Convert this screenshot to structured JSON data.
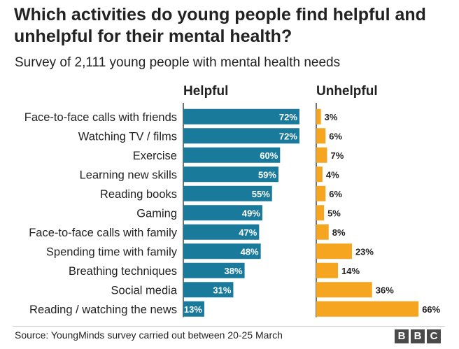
{
  "title": "Which activities do young people find helpful and unhelpful for their mental health?",
  "subtitle": "Survey of 2,111 young people with mental health needs",
  "source": "Source: YoungMinds survey carried out between 20-25 March",
  "logo": [
    "B",
    "B",
    "C"
  ],
  "colors": {
    "helpful": "#1a7a9b",
    "unhelpful": "#f5a51f",
    "axis": "#444444"
  },
  "chart_data": {
    "type": "bar",
    "categories": [
      "Face-to-face calls with friends",
      "Watching TV / films",
      "Exercise",
      "Learning new skills",
      "Reading books",
      "Gaming",
      "Face-to-face calls with family",
      "Spending time with family",
      "Breathing techniques",
      "Social media",
      "Reading / watching the news"
    ],
    "series": [
      {
        "name": "Helpful",
        "values": [
          72,
          72,
          60,
          59,
          55,
          49,
          47,
          48,
          38,
          31,
          13
        ]
      },
      {
        "name": "Unhelpful",
        "values": [
          3,
          6,
          7,
          4,
          6,
          5,
          8,
          23,
          14,
          36,
          66
        ]
      }
    ],
    "unit": "%",
    "orientation": "horizontal",
    "legend": "none"
  }
}
